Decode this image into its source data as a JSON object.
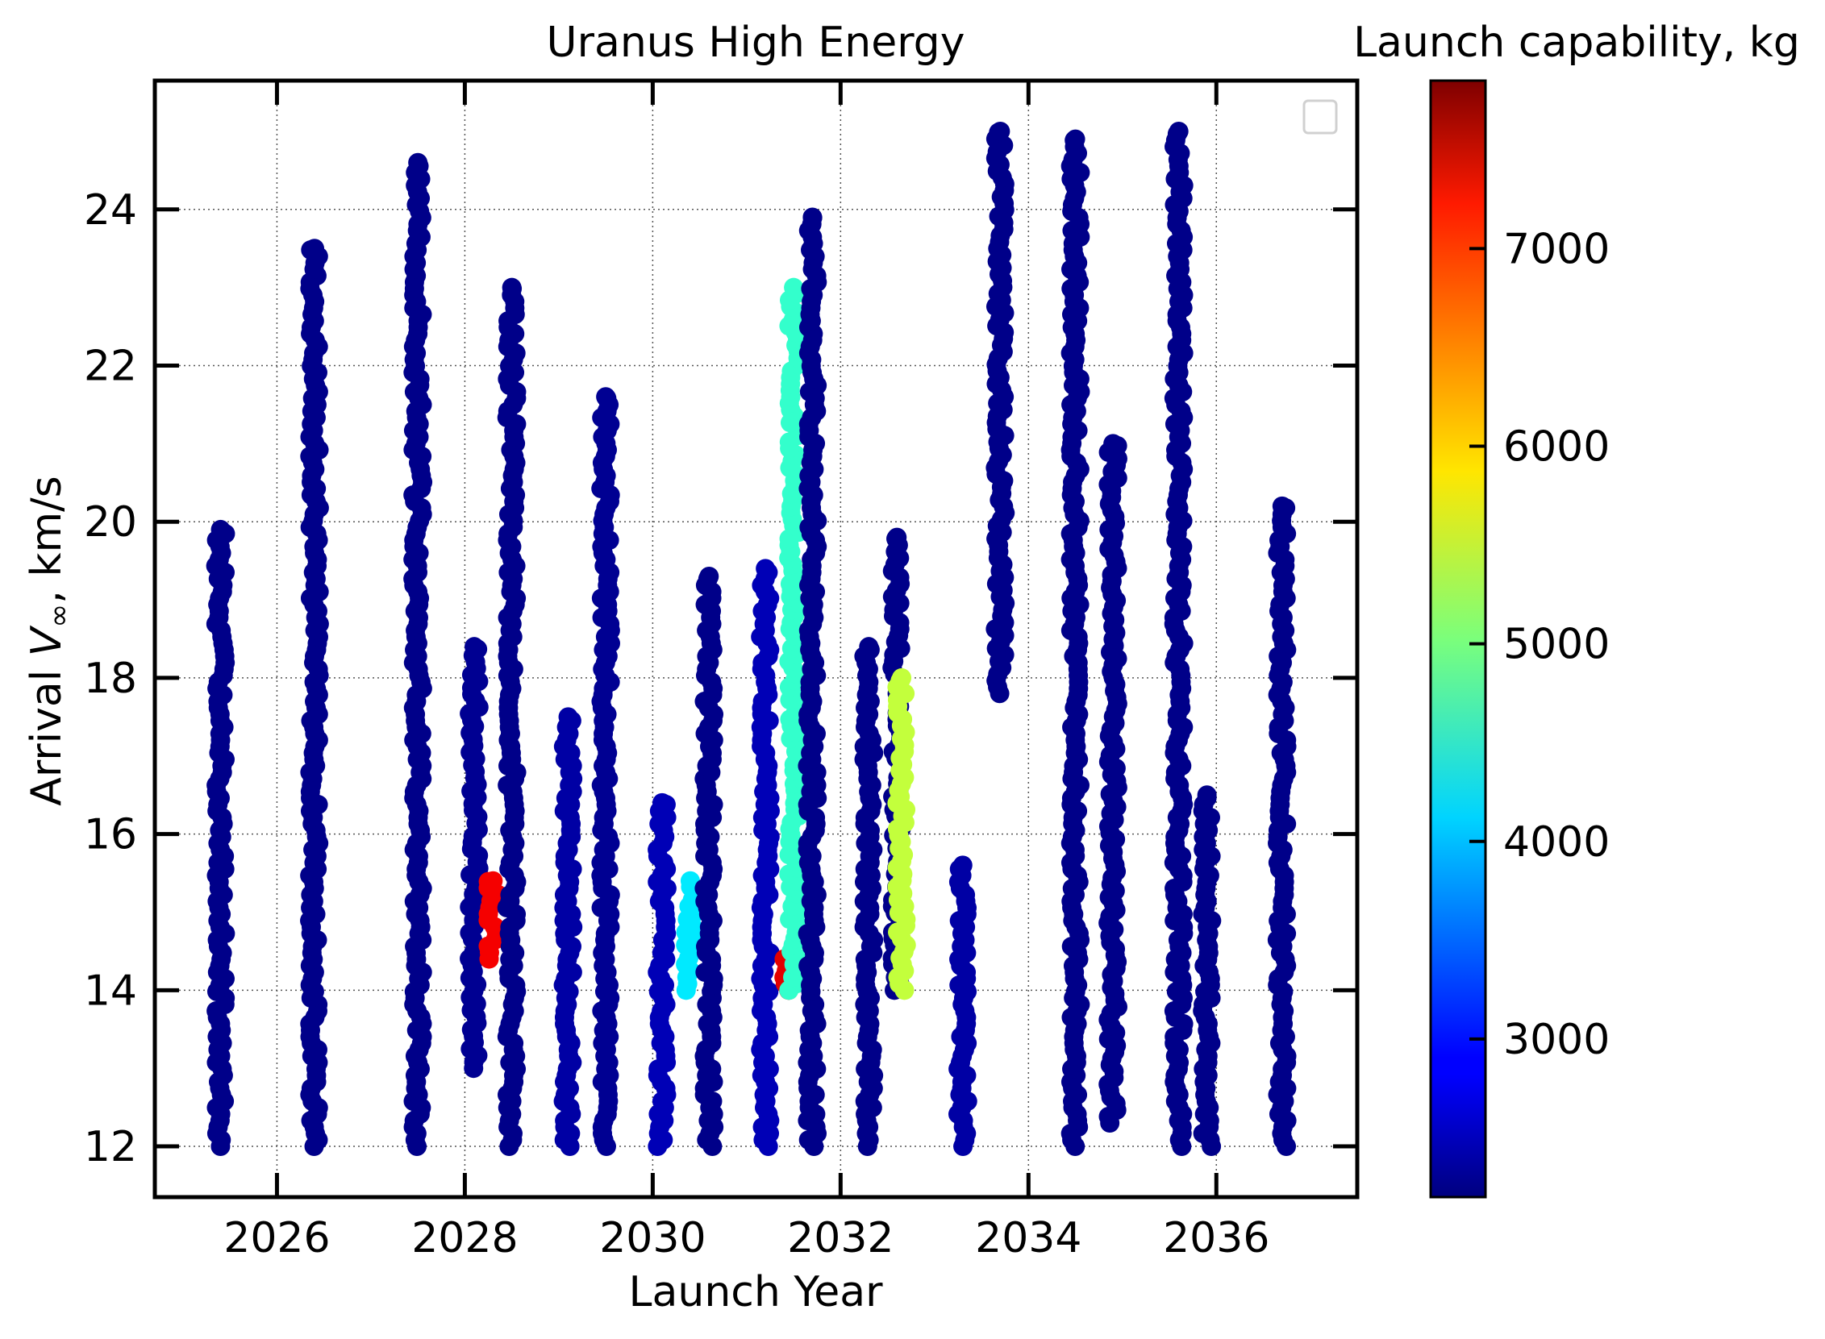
{
  "chart_data": {
    "type": "scatter",
    "title": "Uranus High Energy",
    "xlabel": "Launch Year",
    "ylabel_prefix": "Arrival ",
    "ylabel_symbol": "V",
    "ylabel_subscript": "∞",
    "ylabel_suffix": ", km/s",
    "xlim": [
      2024.7,
      2037.5
    ],
    "ylim": [
      11.35,
      25.65
    ],
    "xticks": [
      2026,
      2028,
      2030,
      2032,
      2034,
      2036
    ],
    "yticks": [
      12,
      14,
      16,
      18,
      20,
      22,
      24
    ],
    "grid": true,
    "legend": "top-right (empty)",
    "colorbar": {
      "label": "Launch capability, kg",
      "range": [
        2200,
        7850
      ],
      "ticks": [
        3000,
        4000,
        5000,
        6000,
        7000
      ],
      "colormap": "jet"
    },
    "strips": [
      {
        "x": 2025.4,
        "ymin": 12.0,
        "ymax": 19.9,
        "value": 2250
      },
      {
        "x": 2026.4,
        "ymin": 12.0,
        "ymax": 23.5,
        "value": 2250
      },
      {
        "x": 2027.5,
        "ymin": 12.0,
        "ymax": 24.6,
        "value": 2250
      },
      {
        "x": 2028.1,
        "ymin": 13.0,
        "ymax": 18.4,
        "value": 2300
      },
      {
        "x": 2028.3,
        "ymin": 14.4,
        "ymax": 15.4,
        "value": 7200
      },
      {
        "x": 2028.5,
        "ymin": 12.0,
        "ymax": 23.0,
        "value": 2250
      },
      {
        "x": 2029.1,
        "ymin": 12.0,
        "ymax": 17.5,
        "value": 2400
      },
      {
        "x": 2029.5,
        "ymin": 12.0,
        "ymax": 21.6,
        "value": 2300
      },
      {
        "x": 2030.1,
        "ymin": 12.0,
        "ymax": 16.4,
        "value": 2500
      },
      {
        "x": 2030.4,
        "ymin": 14.0,
        "ymax": 15.4,
        "value": 4200
      },
      {
        "x": 2030.6,
        "ymin": 12.0,
        "ymax": 19.3,
        "value": 2250
      },
      {
        "x": 2031.2,
        "ymin": 12.0,
        "ymax": 19.4,
        "value": 2500
      },
      {
        "x": 2031.4,
        "ymin": 14.0,
        "ymax": 14.4,
        "value": 7300
      },
      {
        "x": 2031.5,
        "ymin": 14.0,
        "ymax": 23.0,
        "value": 4600
      },
      {
        "x": 2031.7,
        "ymin": 12.0,
        "ymax": 23.9,
        "value": 2250
      },
      {
        "x": 2032.3,
        "ymin": 12.0,
        "ymax": 18.4,
        "value": 2250
      },
      {
        "x": 2032.6,
        "ymin": 14.0,
        "ymax": 19.8,
        "value": 2250
      },
      {
        "x": 2032.65,
        "ymin": 14.0,
        "ymax": 18.0,
        "value": 5400
      },
      {
        "x": 2033.3,
        "ymin": 12.0,
        "ymax": 15.6,
        "value": 2400
      },
      {
        "x": 2033.7,
        "ymin": 17.8,
        "ymax": 25.0,
        "value": 2250
      },
      {
        "x": 2034.5,
        "ymin": 12.0,
        "ymax": 24.9,
        "value": 2250
      },
      {
        "x": 2034.9,
        "ymin": 12.3,
        "ymax": 21.0,
        "value": 2250
      },
      {
        "x": 2035.6,
        "ymin": 12.0,
        "ymax": 25.0,
        "value": 2250
      },
      {
        "x": 2035.9,
        "ymin": 12.0,
        "ymax": 16.5,
        "value": 2250
      },
      {
        "x": 2036.7,
        "ymin": 12.0,
        "ymax": 20.2,
        "value": 2250
      }
    ]
  }
}
